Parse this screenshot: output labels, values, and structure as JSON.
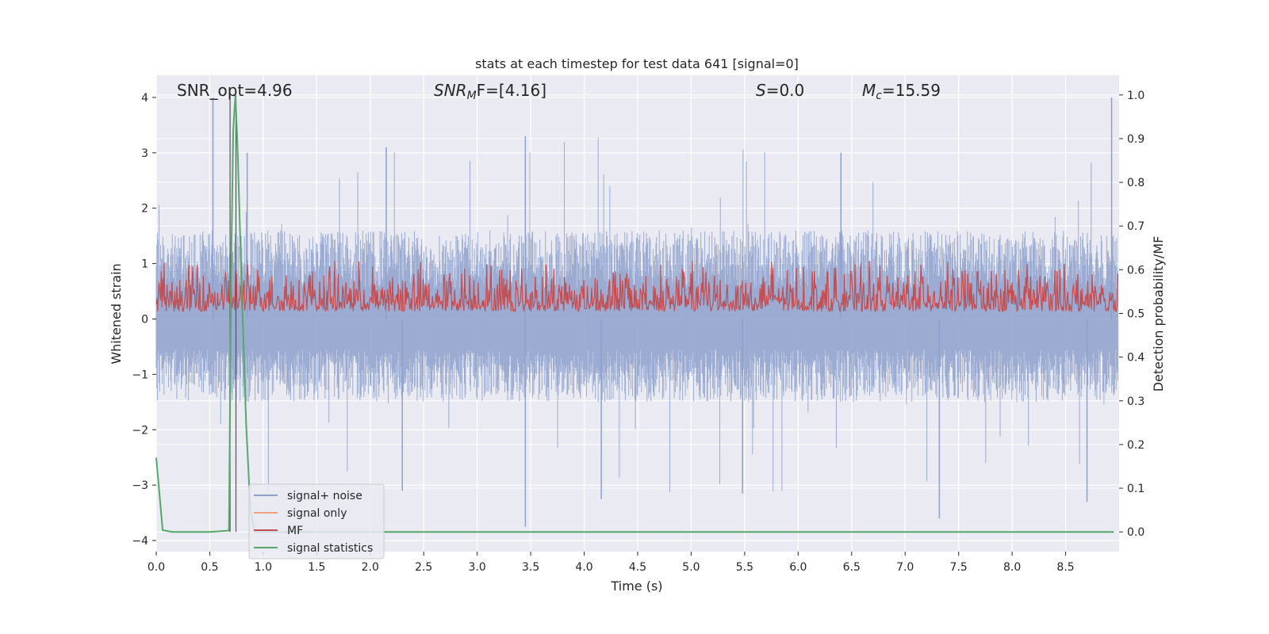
{
  "chart_data": {
    "type": "line",
    "title": "stats at each timestep for test data 641 [signal=0]",
    "xlabel": "Time (s)",
    "ylabel": "Whitened strain",
    "y2label": "Detection probability/MF",
    "xlim": [
      0.0,
      9.0
    ],
    "ylim": [
      -4.2,
      4.4
    ],
    "y2lim": [
      -0.045,
      1.045
    ],
    "xticks": [
      "0.0",
      "0.5",
      "1.0",
      "1.5",
      "2.0",
      "2.5",
      "3.0",
      "3.5",
      "4.0",
      "4.5",
      "5.0",
      "5.5",
      "6.0",
      "6.5",
      "7.0",
      "7.5",
      "8.0",
      "8.5"
    ],
    "yticks": [
      "4",
      "3",
      "2",
      "1",
      "0",
      "−1",
      "−2",
      "−3",
      "−4"
    ],
    "y2ticks": [
      "1.0",
      "0.9",
      "0.8",
      "0.7",
      "0.6",
      "0.5",
      "0.4",
      "0.3",
      "0.2",
      "0.1",
      "0.0"
    ],
    "grid": true,
    "legend": {
      "placement": "lower-left",
      "entries": [
        {
          "label": "signal+ noise",
          "color": "#8da0cb"
        },
        {
          "label": "signal only",
          "color": "#f0a07c"
        },
        {
          "label": "MF",
          "color": "#c44e52"
        },
        {
          "label": "signal statistics",
          "color": "#55a868"
        }
      ]
    },
    "annotations": {
      "snr_opt": {
        "prefix": "SNR_opt=",
        "value": "4.96"
      },
      "snr_mf": {
        "base": "SNR",
        "sub": "M",
        "rest": "F=[4.16]"
      },
      "s": {
        "sym": "S",
        "rest": "=0.0"
      },
      "mc": {
        "sym": "M",
        "sub": "c",
        "rest": "=15.59"
      }
    },
    "series": [
      {
        "name": "signal+ noise",
        "color": "#8da0cb",
        "description_level": "noise band",
        "envelope_approx": {
          "center": 0.0,
          "typical_upper": 1.6,
          "typical_lower": -1.5,
          "max": 4.0,
          "min": -3.75
        }
      },
      {
        "name": "MF",
        "color": "#c44e52",
        "envelope_approx_y2": {
          "typical_lower": 0.505,
          "typical_upper": 0.6,
          "max": 0.62
        }
      },
      {
        "name": "signal statistics",
        "color": "#55a868",
        "x": [
          0.0,
          0.06,
          0.15,
          0.3,
          0.5,
          0.68,
          0.7,
          0.72,
          0.74,
          0.76,
          0.8,
          0.84,
          0.88,
          0.92,
          1.0,
          2.0,
          4.0,
          6.0,
          8.0,
          8.95
        ],
        "y2": [
          0.17,
          0.004,
          0.0,
          0.0,
          0.0,
          0.003,
          0.6,
          0.92,
          1.0,
          0.88,
          0.55,
          0.25,
          0.05,
          0.0,
          0.0,
          0.0,
          0.0,
          0.0,
          0.0,
          0.0
        ]
      }
    ],
    "vlines": [
      {
        "x": 0.69,
        "y2_range": [
          0.0,
          1.0
        ],
        "color": "#555555"
      },
      {
        "x": 0.745,
        "y2_range": [
          0.0,
          1.0
        ],
        "color": "#555555"
      }
    ]
  }
}
